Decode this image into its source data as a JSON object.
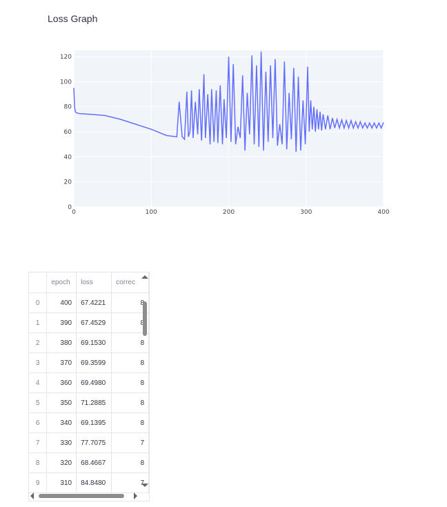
{
  "page": {
    "title": "Loss Graph"
  },
  "chart_data": {
    "type": "line",
    "title": "",
    "xlabel": "",
    "ylabel": "",
    "xlim": [
      0,
      400
    ],
    "ylim": [
      0,
      125
    ],
    "xticks": [
      "0",
      "100",
      "200",
      "300",
      "400"
    ],
    "yticks": [
      "0",
      "20",
      "40",
      "60",
      "80",
      "100",
      "120"
    ],
    "grid": true,
    "color": "#636efa",
    "series": [
      {
        "x": [
          0,
          1,
          2,
          4,
          8,
          20,
          40,
          60,
          80,
          100,
          120,
          133,
          136,
          140,
          143,
          146,
          148,
          150,
          152,
          154,
          157,
          160,
          162,
          165,
          168,
          170,
          173,
          176,
          178,
          181,
          184,
          186,
          189,
          192,
          194,
          197,
          200,
          203,
          206,
          209,
          212,
          215,
          218,
          221,
          224,
          227,
          230,
          233,
          236,
          239,
          242,
          245,
          248,
          251,
          254,
          257,
          260,
          263,
          266,
          269,
          272,
          275,
          278,
          281,
          284,
          287,
          290,
          293,
          296,
          299,
          302,
          304,
          306,
          308,
          310,
          312,
          314,
          316,
          318,
          320,
          322,
          325,
          328,
          331,
          334,
          337,
          340,
          343,
          346,
          349,
          352,
          355,
          358,
          361,
          364,
          367,
          370,
          373,
          376,
          379,
          382,
          385,
          388,
          391,
          394,
          397,
          400
        ],
        "y": [
          95,
          80,
          76,
          75,
          74.5,
          74,
          73,
          70,
          66,
          62,
          57,
          56,
          84,
          56,
          54,
          92,
          56,
          60,
          93,
          55,
          84,
          58,
          94,
          53,
          106,
          55,
          90,
          50,
          94,
          52,
          93,
          51,
          97,
          50,
          86,
          55,
          120,
          52,
          114,
          50,
          64,
          55,
          105,
          45,
          91,
          58,
          121,
          50,
          113,
          48,
          124,
          45,
          108,
          52,
          113,
          55,
          118,
          49,
          66,
          50,
          116,
          46,
          91,
          54,
          111,
          44,
          104,
          45,
          85,
          50,
          112,
          60,
          85,
          62,
          80,
          60,
          78,
          62,
          76,
          61,
          74,
          62,
          73,
          62,
          71,
          63,
          70,
          63,
          69.5,
          63,
          69,
          63,
          69,
          63,
          68,
          63,
          68,
          63,
          67,
          63,
          67,
          63,
          67,
          63,
          67,
          63,
          67.4
        ]
      }
    ]
  },
  "table": {
    "columns": {
      "index": "",
      "epoch": "epoch",
      "loss": "loss",
      "correct": "correc"
    },
    "rows": [
      {
        "index": "0",
        "epoch": "400",
        "loss": "67.4221",
        "correct": "8"
      },
      {
        "index": "1",
        "epoch": "390",
        "loss": "67.4529",
        "correct": "8"
      },
      {
        "index": "2",
        "epoch": "380",
        "loss": "69.1530",
        "correct": "8"
      },
      {
        "index": "3",
        "epoch": "370",
        "loss": "69.3599",
        "correct": "8"
      },
      {
        "index": "4",
        "epoch": "360",
        "loss": "69.4980",
        "correct": "8"
      },
      {
        "index": "5",
        "epoch": "350",
        "loss": "71.2885",
        "correct": "8"
      },
      {
        "index": "6",
        "epoch": "340",
        "loss": "69.1395",
        "correct": "8"
      },
      {
        "index": "7",
        "epoch": "330",
        "loss": "77.7075",
        "correct": "7"
      },
      {
        "index": "8",
        "epoch": "320",
        "loss": "68.4667",
        "correct": "8"
      },
      {
        "index": "9",
        "epoch": "310",
        "loss": "84.8480",
        "correct": "7"
      }
    ]
  }
}
